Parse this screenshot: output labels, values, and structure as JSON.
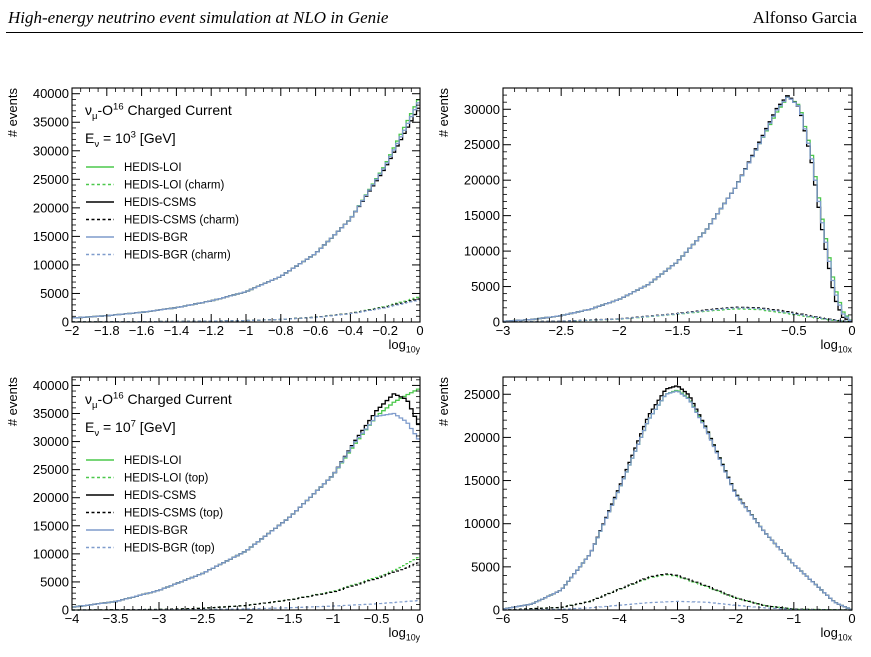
{
  "header": {
    "title": "High-energy neutrino event simulation at NLO in Genie",
    "author": "Alfonso Garcia"
  },
  "colors": {
    "lo": "#4cc84c",
    "csms": "#000000",
    "bgr": "#7f9ccc"
  },
  "chart_data": [
    {
      "type": "line",
      "panel": "top-left",
      "title_line1": "ν_μ-O^16 Charged Current",
      "title_line2": "E_ν = 10^3 [GeV]",
      "xlabel": "log_10y",
      "ylabel": "# events",
      "xlim": [
        -2,
        0
      ],
      "ylim": [
        0,
        41000
      ],
      "xticks": [
        -2,
        -1.8,
        -1.6,
        -1.4,
        -1.2,
        -1,
        -0.8,
        -0.6,
        -0.4,
        -0.2,
        0
      ],
      "xtick_labels": [
        "−2",
        "−1.8",
        "−1.6",
        "−1.4",
        "−1.2",
        "−1",
        "−0.8",
        "−0.6",
        "−0.4",
        "−0.2",
        "0"
      ],
      "yticks": [
        0,
        5000,
        10000,
        15000,
        20000,
        25000,
        30000,
        35000,
        40000
      ],
      "ytick_labels": [
        "0",
        "5000",
        "10000",
        "15000",
        "20000",
        "25000",
        "30000",
        "35000",
        "40000"
      ],
      "legend": [
        {
          "label": "HEDIS-LOI",
          "color": "lo",
          "dashed": false
        },
        {
          "label": "HEDIS-LOI (charm)",
          "color": "lo",
          "dashed": true
        },
        {
          "label": "HEDIS-CSMS",
          "color": "csms",
          "dashed": false
        },
        {
          "label": "HEDIS-CSMS (charm)",
          "color": "csms",
          "dashed": true
        },
        {
          "label": "HEDIS-BGR",
          "color": "bgr",
          "dashed": false
        },
        {
          "label": "HEDIS-BGR (charm)",
          "color": "bgr",
          "dashed": true
        }
      ],
      "series": [
        {
          "name": "HEDIS-LOI",
          "color": "lo",
          "dashed": false,
          "x": [
            -2,
            -1.8,
            -1.6,
            -1.4,
            -1.2,
            -1.0,
            -0.8,
            -0.6,
            -0.4,
            -0.2,
            -0.1,
            0
          ],
          "y": [
            700,
            1100,
            1700,
            2500,
            3700,
            5300,
            8000,
            12000,
            18000,
            27500,
            33500,
            39500
          ]
        },
        {
          "name": "HEDIS-LOI (charm)",
          "color": "lo",
          "dashed": true,
          "x": [
            -2,
            -1.6,
            -1.2,
            -1.0,
            -0.8,
            -0.6,
            -0.4,
            -0.2,
            0
          ],
          "y": [
            20,
            60,
            150,
            250,
            450,
            850,
            1500,
            2700,
            4400
          ]
        },
        {
          "name": "HEDIS-CSMS",
          "color": "csms",
          "dashed": false,
          "x": [
            -2,
            -1.8,
            -1.6,
            -1.4,
            -1.2,
            -1.0,
            -0.8,
            -0.6,
            -0.4,
            -0.2,
            -0.1,
            0
          ],
          "y": [
            700,
            1100,
            1700,
            2500,
            3700,
            5300,
            8000,
            12000,
            18000,
            27000,
            32500,
            38000
          ]
        },
        {
          "name": "HEDIS-CSMS (charm)",
          "color": "csms",
          "dashed": true,
          "x": [
            -2,
            -1.6,
            -1.2,
            -1.0,
            -0.8,
            -0.6,
            -0.4,
            -0.2,
            0
          ],
          "y": [
            20,
            60,
            150,
            250,
            450,
            850,
            1500,
            2600,
            4100
          ]
        },
        {
          "name": "HEDIS-BGR",
          "color": "bgr",
          "dashed": false,
          "x": [
            -2,
            -1.8,
            -1.6,
            -1.4,
            -1.2,
            -1.0,
            -0.8,
            -0.6,
            -0.4,
            -0.2,
            -0.1,
            0
          ],
          "y": [
            700,
            1100,
            1700,
            2500,
            3700,
            5300,
            8000,
            12000,
            18000,
            27300,
            33000,
            39000
          ]
        },
        {
          "name": "HEDIS-BGR (charm)",
          "color": "bgr",
          "dashed": true,
          "x": [
            -2,
            -1.6,
            -1.2,
            -1.0,
            -0.8,
            -0.6,
            -0.4,
            -0.2,
            0
          ],
          "y": [
            20,
            60,
            150,
            250,
            450,
            800,
            1450,
            2500,
            3900
          ]
        }
      ]
    },
    {
      "type": "line",
      "panel": "top-right",
      "xlabel": "log_10x",
      "ylabel": "# events",
      "xlim": [
        -3,
        0
      ],
      "ylim": [
        0,
        33000
      ],
      "xticks": [
        -3,
        -2.5,
        -2,
        -1.5,
        -1,
        -0.5,
        0
      ],
      "xtick_labels": [
        "−3",
        "−2.5",
        "−2",
        "−1.5",
        "−1",
        "−0.5",
        "0"
      ],
      "yticks": [
        0,
        5000,
        10000,
        15000,
        20000,
        25000,
        30000
      ],
      "ytick_labels": [
        "0",
        "5000",
        "10000",
        "15000",
        "20000",
        "25000",
        "30000"
      ],
      "series": [
        {
          "name": "HEDIS-LOI",
          "color": "lo",
          "dashed": false,
          "x": [
            -3,
            -2.75,
            -2.5,
            -2.25,
            -2,
            -1.75,
            -1.5,
            -1.25,
            -1,
            -0.8,
            -0.65,
            -0.55,
            -0.45,
            -0.35,
            -0.25,
            -0.15,
            -0.08,
            0
          ],
          "y": [
            100,
            350,
            900,
            1800,
            3200,
            5300,
            8500,
            13000,
            19000,
            25000,
            29500,
            31800,
            30500,
            24000,
            14000,
            5000,
            1500,
            0
          ]
        },
        {
          "name": "HEDIS-LOI (charm)",
          "color": "lo",
          "dashed": true,
          "x": [
            -3,
            -2.5,
            -2,
            -1.5,
            -1.2,
            -1,
            -0.8,
            -0.6,
            -0.4,
            -0.2,
            0
          ],
          "y": [
            0,
            100,
            400,
            1100,
            1600,
            1850,
            1750,
            1300,
            800,
            300,
            0
          ]
        },
        {
          "name": "HEDIS-CSMS",
          "color": "csms",
          "dashed": false,
          "x": [
            -3,
            -2.75,
            -2.5,
            -2.25,
            -2,
            -1.75,
            -1.5,
            -1.25,
            -1,
            -0.8,
            -0.65,
            -0.55,
            -0.45,
            -0.35,
            -0.25,
            -0.15,
            -0.08,
            0
          ],
          "y": [
            100,
            350,
            900,
            1800,
            3200,
            5300,
            8500,
            13000,
            19000,
            25200,
            30000,
            32000,
            30200,
            23000,
            12500,
            3500,
            700,
            0
          ]
        },
        {
          "name": "HEDIS-CSMS (charm)",
          "color": "csms",
          "dashed": true,
          "x": [
            -3,
            -2.5,
            -2,
            -1.5,
            -1.2,
            -1,
            -0.8,
            -0.6,
            -0.4,
            -0.2,
            0
          ],
          "y": [
            0,
            120,
            450,
            1200,
            1800,
            2100,
            2000,
            1600,
            1000,
            400,
            0
          ]
        },
        {
          "name": "HEDIS-BGR",
          "color": "bgr",
          "dashed": false,
          "x": [
            -3,
            -2.75,
            -2.5,
            -2.25,
            -2,
            -1.75,
            -1.5,
            -1.25,
            -1,
            -0.8,
            -0.65,
            -0.55,
            -0.45,
            -0.35,
            -0.25,
            -0.15,
            -0.08,
            0
          ],
          "y": [
            100,
            350,
            900,
            1800,
            3200,
            5300,
            8500,
            13000,
            19000,
            25000,
            29800,
            31800,
            30300,
            23500,
            13500,
            4500,
            1200,
            0
          ]
        },
        {
          "name": "HEDIS-BGR (charm)",
          "color": "bgr",
          "dashed": true,
          "x": [
            -3,
            -2.5,
            -2,
            -1.5,
            -1.2,
            -1,
            -0.8,
            -0.6,
            -0.4,
            -0.2,
            0
          ],
          "y": [
            0,
            110,
            420,
            1150,
            1700,
            2000,
            1900,
            1450,
            900,
            350,
            0
          ]
        }
      ]
    },
    {
      "type": "line",
      "panel": "bottom-left",
      "title_line1": "ν_μ-O^16 Charged Current",
      "title_line2": "E_ν = 10^7 [GeV]",
      "xlabel": "log_10y",
      "ylabel": "# events",
      "xlim": [
        -4,
        0
      ],
      "ylim": [
        0,
        41500
      ],
      "xticks": [
        -4,
        -3.5,
        -3,
        -2.5,
        -2,
        -1.5,
        -1,
        -0.5,
        0
      ],
      "xtick_labels": [
        "−4",
        "−3.5",
        "−3",
        "−2.5",
        "−2",
        "−1.5",
        "−1",
        "−0.5",
        "0"
      ],
      "yticks": [
        0,
        5000,
        10000,
        15000,
        20000,
        25000,
        30000,
        35000,
        40000
      ],
      "ytick_labels": [
        "0",
        "5000",
        "10000",
        "15000",
        "20000",
        "25000",
        "30000",
        "35000",
        "40000"
      ],
      "legend": [
        {
          "label": "HEDIS-LOI",
          "color": "lo",
          "dashed": false
        },
        {
          "label": "HEDIS-LOI (top)",
          "color": "lo",
          "dashed": true
        },
        {
          "label": "HEDIS-CSMS",
          "color": "csms",
          "dashed": false
        },
        {
          "label": "HEDIS-CSMS (top)",
          "color": "csms",
          "dashed": true
        },
        {
          "label": "HEDIS-BGR",
          "color": "bgr",
          "dashed": false
        },
        {
          "label": "HEDIS-BGR (top)",
          "color": "bgr",
          "dashed": true
        }
      ],
      "series": [
        {
          "name": "HEDIS-LOI",
          "color": "lo",
          "dashed": false,
          "x": [
            -4,
            -3.5,
            -3,
            -2.5,
            -2,
            -1.5,
            -1,
            -0.75,
            -0.5,
            -0.3,
            -0.15,
            0
          ],
          "y": [
            500,
            1500,
            3500,
            6500,
            10500,
            16500,
            24000,
            29500,
            34500,
            37000,
            38300,
            39500
          ]
        },
        {
          "name": "HEDIS-LOI (top)",
          "color": "lo",
          "dashed": true,
          "x": [
            -4,
            -3,
            -2.5,
            -2,
            -1.5,
            -1,
            -0.5,
            -0.25,
            0
          ],
          "y": [
            0,
            100,
            300,
            800,
            1800,
            3300,
            5800,
            7300,
            9500
          ]
        },
        {
          "name": "HEDIS-CSMS",
          "color": "csms",
          "dashed": false,
          "x": [
            -4,
            -3.5,
            -3,
            -2.5,
            -2,
            -1.5,
            -1,
            -0.75,
            -0.5,
            -0.3,
            -0.15,
            0
          ],
          "y": [
            500,
            1500,
            3500,
            6500,
            10500,
            16500,
            24000,
            30000,
            35500,
            38500,
            37500,
            32500
          ]
        },
        {
          "name": "HEDIS-CSMS (top)",
          "color": "csms",
          "dashed": true,
          "x": [
            -4,
            -3,
            -2.5,
            -2,
            -1.5,
            -1,
            -0.5,
            -0.25,
            0
          ],
          "y": [
            0,
            100,
            300,
            800,
            1800,
            3200,
            5600,
            7000,
            8500
          ]
        },
        {
          "name": "HEDIS-BGR",
          "color": "bgr",
          "dashed": false,
          "x": [
            -4,
            -3.5,
            -3,
            -2.5,
            -2,
            -1.5,
            -1,
            -0.75,
            -0.5,
            -0.3,
            -0.15,
            0
          ],
          "y": [
            500,
            1500,
            3500,
            6500,
            10500,
            16500,
            24000,
            29800,
            34500,
            35000,
            33500,
            30000
          ]
        },
        {
          "name": "HEDIS-BGR (top)",
          "color": "bgr",
          "dashed": true,
          "x": [
            -4,
            -3,
            -2.5,
            -2,
            -1.5,
            -1,
            -0.5,
            -0.25,
            0
          ],
          "y": [
            0,
            30,
            80,
            200,
            400,
            700,
            1100,
            1400,
            1700
          ]
        }
      ]
    },
    {
      "type": "line",
      "panel": "bottom-right",
      "xlabel": "log_10x",
      "ylabel": "# events",
      "xlim": [
        -6,
        0
      ],
      "ylim": [
        0,
        27000
      ],
      "xticks": [
        -6,
        -5,
        -4,
        -3,
        -2,
        -1,
        0
      ],
      "xtick_labels": [
        "−6",
        "−5",
        "−4",
        "−3",
        "−2",
        "−1",
        "0"
      ],
      "yticks": [
        0,
        5000,
        10000,
        15000,
        20000,
        25000
      ],
      "ytick_labels": [
        "0",
        "5000",
        "10000",
        "15000",
        "20000",
        "25000"
      ],
      "series": [
        {
          "name": "HEDIS-LOI",
          "color": "lo",
          "dashed": false,
          "x": [
            -6,
            -5.5,
            -5,
            -4.5,
            -4,
            -3.5,
            -3.2,
            -3,
            -2.8,
            -2.5,
            -2,
            -1.5,
            -1,
            -0.6,
            -0.3,
            0
          ],
          "y": [
            100,
            700,
            2300,
            6500,
            14000,
            22000,
            25000,
            25500,
            24500,
            21000,
            13500,
            9000,
            5300,
            2800,
            900,
            0
          ]
        },
        {
          "name": "HEDIS-LOI (top)",
          "color": "lo",
          "dashed": true,
          "x": [
            -6,
            -5,
            -4.5,
            -4,
            -3.5,
            -3.2,
            -3,
            -2.5,
            -2,
            -1.5,
            -1,
            0
          ],
          "y": [
            0,
            300,
            1000,
            2400,
            3700,
            4100,
            3900,
            2700,
            1400,
            500,
            100,
            0
          ]
        },
        {
          "name": "HEDIS-CSMS",
          "color": "csms",
          "dashed": false,
          "x": [
            -6,
            -5.5,
            -5,
            -4.5,
            -4,
            -3.5,
            -3.2,
            -3,
            -2.8,
            -2.5,
            -2,
            -1.5,
            -1,
            -0.6,
            -0.3,
            0
          ],
          "y": [
            100,
            700,
            2300,
            6500,
            14200,
            22500,
            25600,
            26000,
            24900,
            21000,
            13500,
            9000,
            5300,
            2800,
            900,
            0
          ]
        },
        {
          "name": "HEDIS-CSMS (top)",
          "color": "csms",
          "dashed": true,
          "x": [
            -6,
            -5,
            -4.5,
            -4,
            -3.5,
            -3.2,
            -3,
            -2.5,
            -2,
            -1.5,
            -1,
            0
          ],
          "y": [
            0,
            300,
            1000,
            2400,
            3800,
            4200,
            4000,
            2800,
            1400,
            500,
            100,
            0
          ]
        },
        {
          "name": "HEDIS-BGR",
          "color": "bgr",
          "dashed": false,
          "x": [
            -6,
            -5.5,
            -5,
            -4.5,
            -4,
            -3.5,
            -3.2,
            -3,
            -2.8,
            -2.5,
            -2,
            -1.5,
            -1,
            -0.6,
            -0.3,
            0
          ],
          "y": [
            100,
            700,
            2300,
            6500,
            14000,
            22000,
            25000,
            25400,
            24400,
            20800,
            13400,
            9000,
            5300,
            2800,
            900,
            0
          ]
        },
        {
          "name": "HEDIS-BGR (top)",
          "color": "bgr",
          "dashed": true,
          "x": [
            -6,
            -5,
            -4.5,
            -4,
            -3.5,
            -3,
            -2.5,
            -2,
            -1.5,
            -1,
            0
          ],
          "y": [
            0,
            80,
            250,
            550,
            850,
            1000,
            900,
            550,
            250,
            60,
            0
          ]
        }
      ]
    }
  ]
}
